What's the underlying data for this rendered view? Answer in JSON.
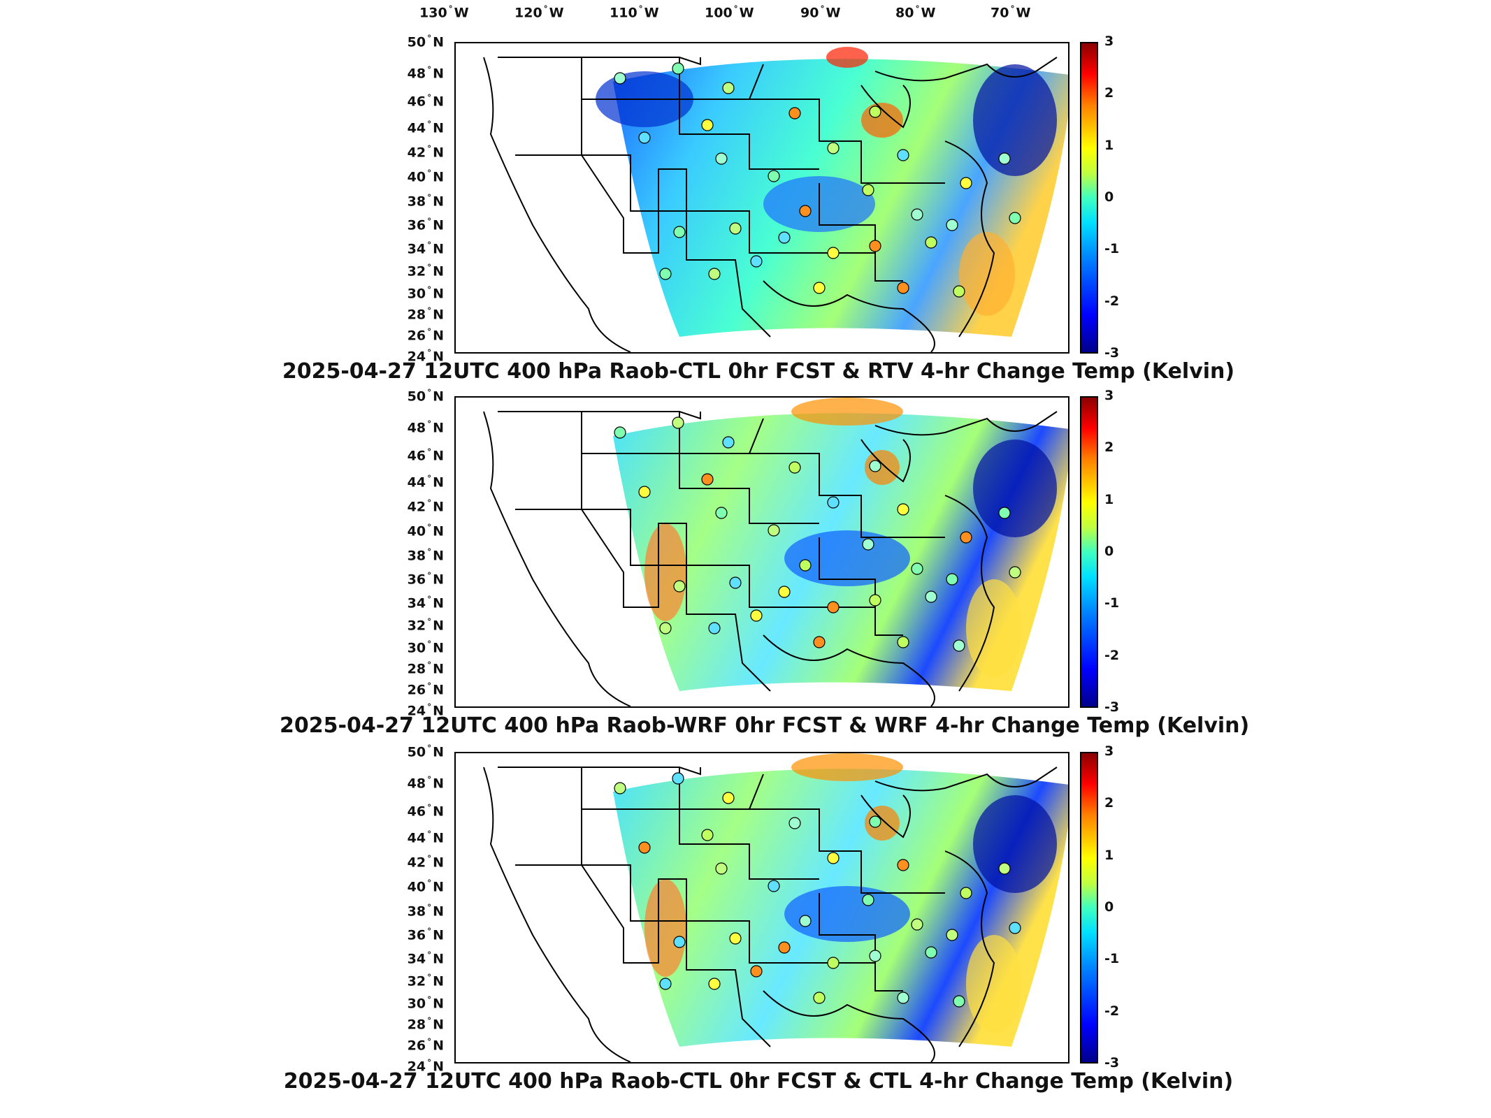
{
  "longitude_labels": [
    "130",
    "120",
    "110",
    "100",
    "90",
    "80",
    "70"
  ],
  "longitude_hemisphere": "W",
  "latitude_labels": [
    "50",
    "48",
    "46",
    "44",
    "42",
    "40",
    "38",
    "36",
    "34",
    "32",
    "30",
    "28",
    "26",
    "24"
  ],
  "latitude_hemisphere": "N",
  "colorbar_ticks": [
    "3",
    "2",
    "1",
    "0",
    "-1",
    "-2",
    "-3"
  ],
  "panels": [
    {
      "title": "2025-04-27 12UTC 400 hPa Raob-CTL 0hr FCST & RTV 4-hr Change Temp (Kelvin)"
    },
    {
      "title": "2025-04-27 12UTC 400 hPa Raob-WRF 0hr FCST & WRF 4-hr Change Temp (Kelvin)"
    },
    {
      "title": "2025-04-27 12UTC 400 hPa Raob-CTL 0hr FCST & CTL 4-hr Change Temp (Kelvin)"
    }
  ],
  "colors": {
    "cold_extreme": "#00008b",
    "cold": "#0000ff",
    "neutral": "#40ffbf",
    "warm": "#ffff00",
    "warm_extreme": "#8b0000"
  }
}
